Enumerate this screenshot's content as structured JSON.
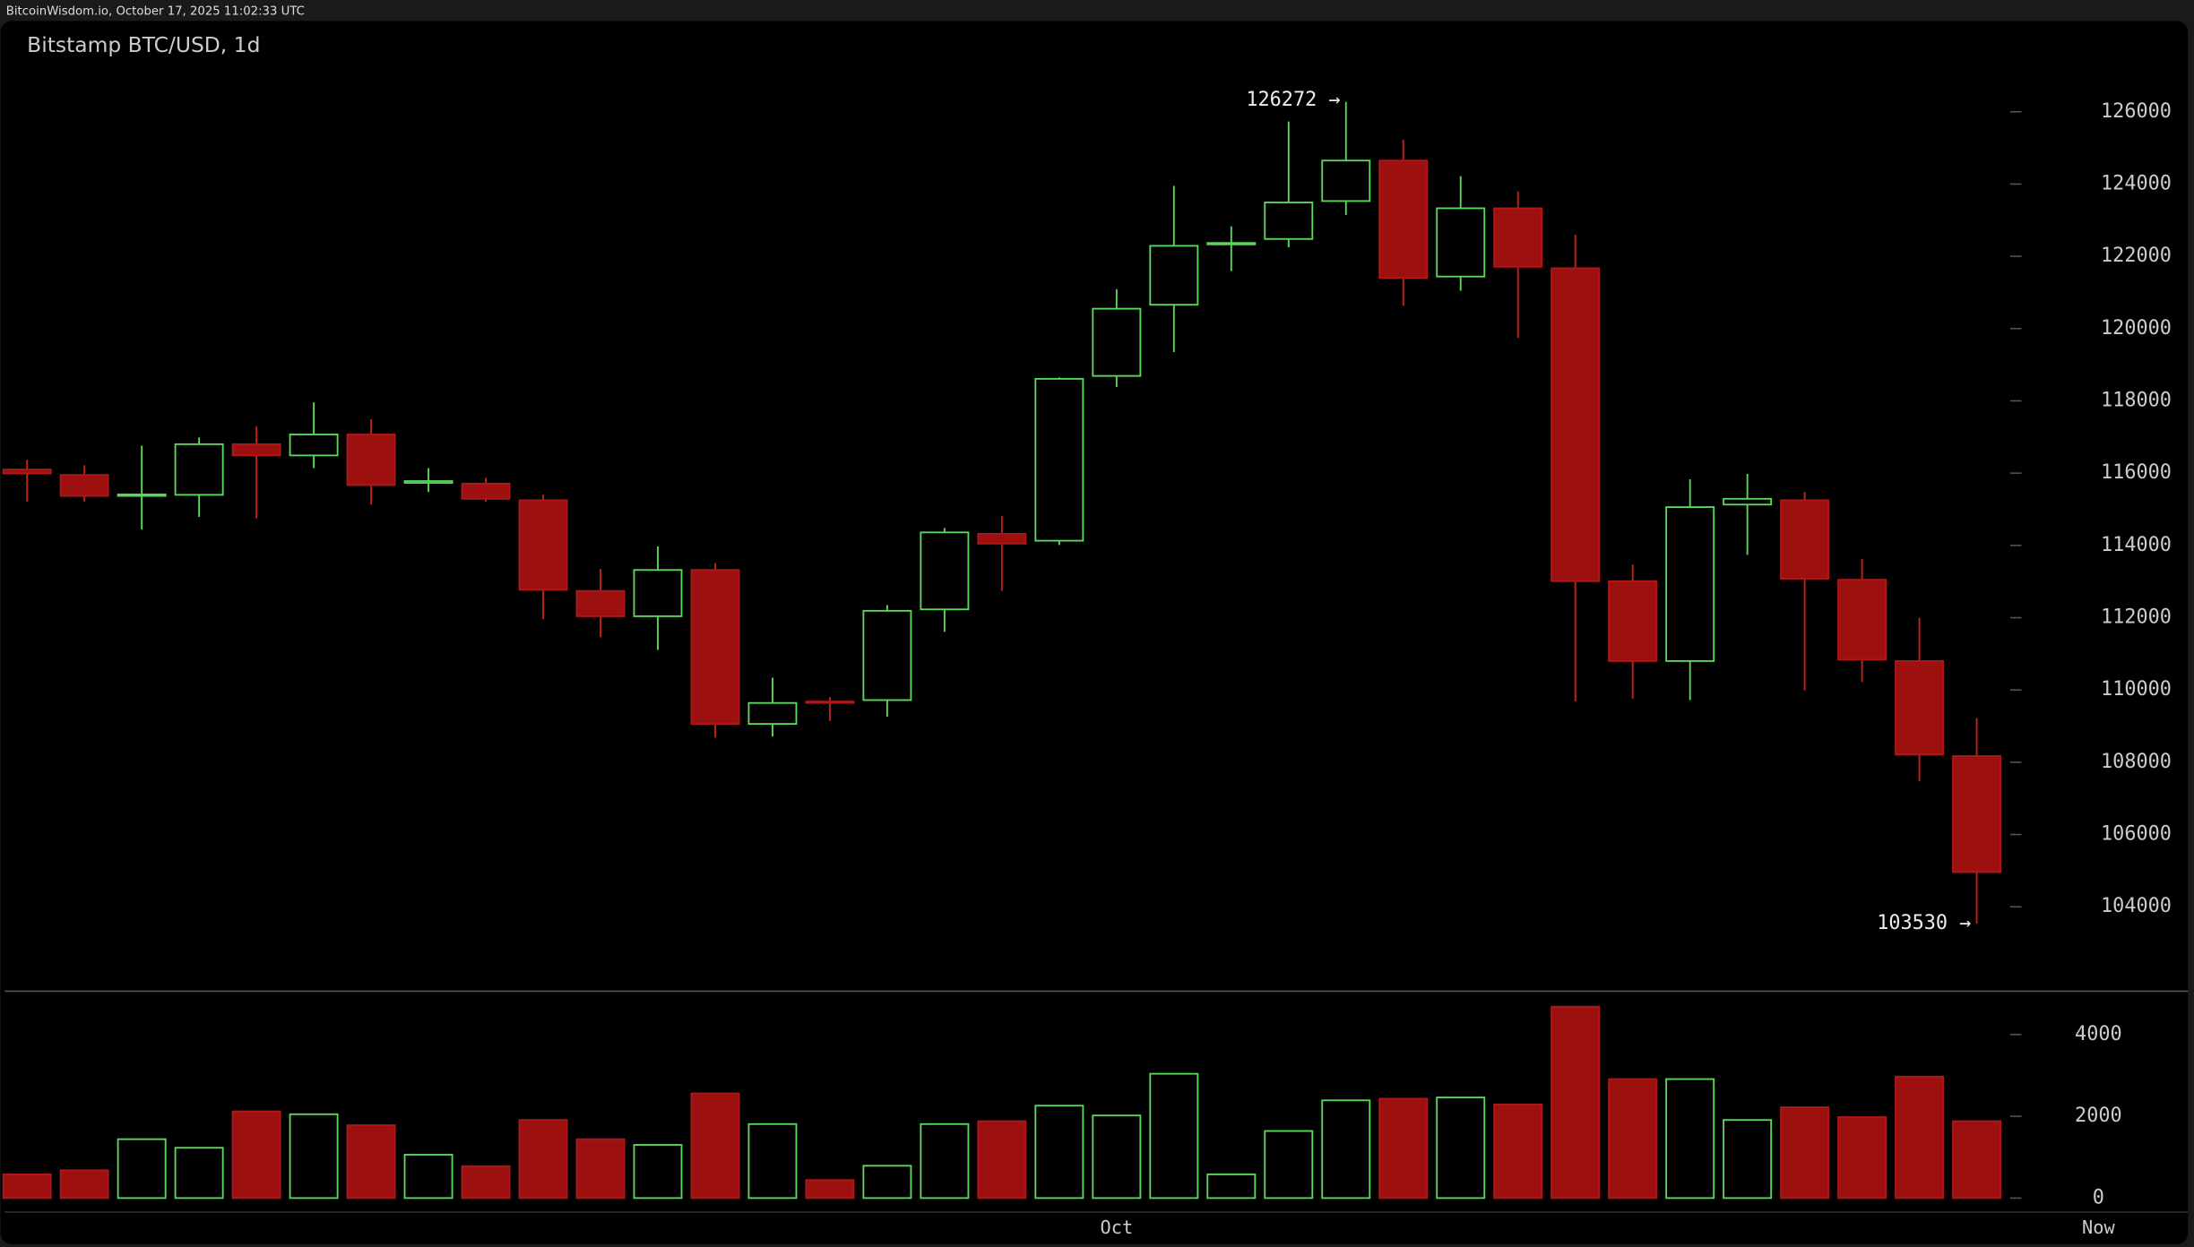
{
  "header": "BitcoinWisdom.io, October 17, 2025 11:02:33 UTC",
  "chart_data": {
    "type": "candlestick",
    "title": "Bitstamp BTC/USD, 1d",
    "categories": [
      null,
      null,
      null,
      null,
      null,
      null,
      null,
      null,
      null,
      null,
      null,
      null,
      null,
      null,
      null,
      null,
      null,
      null,
      null,
      "Oct",
      null,
      null,
      null,
      null,
      null,
      null,
      null,
      null,
      null,
      null,
      null,
      null,
      null,
      null,
      null
    ],
    "open": [
      116100,
      115950,
      115370,
      115400,
      116800,
      116490,
      117070,
      115730,
      115710,
      115250,
      112740,
      112040,
      113320,
      109060,
      109680,
      109720,
      112230,
      114320,
      114130,
      118690,
      120660,
      122330,
      122480,
      123530,
      124650,
      121440,
      123330,
      121670,
      113010,
      110800,
      115130,
      115250,
      113050,
      110800,
      108170
    ],
    "high": [
      116370,
      116220,
      116760,
      116990,
      117300,
      117960,
      117490,
      116140,
      115870,
      115400,
      113350,
      113970,
      113510,
      110340,
      109800,
      112350,
      114480,
      114820,
      118650,
      121090,
      123950,
      122830,
      125730,
      126272,
      125230,
      124220,
      123800,
      122600,
      113470,
      115830,
      115980,
      115480,
      113630,
      112000,
      109220
    ],
    "low": [
      115210,
      115210,
      114440,
      114790,
      114750,
      116140,
      115130,
      115480,
      115210,
      111960,
      111460,
      111110,
      108680,
      108710,
      109140,
      109260,
      111610,
      112740,
      114010,
      118380,
      119350,
      121590,
      122250,
      123140,
      120630,
      121050,
      119740,
      109680,
      109760,
      109720,
      113740,
      109990,
      110220,
      107480,
      103530
    ],
    "close": [
      115990,
      115370,
      115410,
      116800,
      116490,
      117070,
      115670,
      115780,
      115290,
      112770,
      112040,
      113320,
      109060,
      109640,
      109640,
      112190,
      114360,
      114050,
      118610,
      120550,
      122290,
      122370,
      123490,
      124650,
      121400,
      123330,
      121710,
      113010,
      110800,
      115060,
      115290,
      113080,
      110840,
      108210,
      104960
    ],
    "volume": [
      580,
      680,
      1440,
      1230,
      2120,
      2050,
      1780,
      1060,
      780,
      1910,
      1440,
      1300,
      2560,
      1810,
      440,
      790,
      1810,
      1880,
      2260,
      2020,
      3040,
      580,
      1640,
      2390,
      2430,
      2460,
      2290,
      4680,
      2910,
      2910,
      1910,
      2220,
      1980,
      2970,
      1880
    ],
    "up_color": "#5ad85a",
    "down_color": "#9c1010",
    "ylim": [
      101800,
      128300
    ],
    "yticks": [
      104000,
      106000,
      108000,
      110000,
      112000,
      114000,
      116000,
      118000,
      120000,
      122000,
      124000,
      126000
    ],
    "volume_ylim": [
      0,
      5000
    ],
    "volume_yticks": [
      0,
      2000,
      4000
    ],
    "high_label": "126272 →",
    "low_label": "103530 →",
    "now_label": "Now"
  }
}
